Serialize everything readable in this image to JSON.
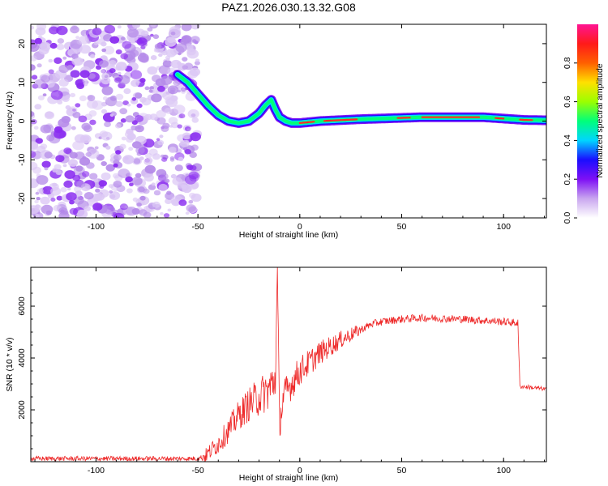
{
  "title": "PAZ1.2026.030.13.32.G08",
  "chart_data": [
    {
      "type": "heatmap",
      "xlabel": "Height of straight line (km)",
      "ylabel": "Frequency (Hz)",
      "xlim": [
        -132,
        121
      ],
      "ylim": [
        -25,
        25
      ],
      "xticks": [
        -100,
        -50,
        0,
        50,
        100
      ],
      "yticks": [
        -20,
        -10,
        0,
        10,
        20
      ],
      "noise_region": [
        -132,
        -50
      ],
      "ridge": {
        "x": [
          -60,
          -55,
          -50,
          -45,
          -40,
          -35,
          -30,
          -25,
          -20,
          -17,
          -14,
          -12,
          -10,
          -7,
          -4,
          0,
          10,
          30,
          60,
          90,
          110,
          121
        ],
        "y": [
          12,
          10,
          7,
          4,
          1.5,
          0,
          -0.5,
          0,
          2,
          4,
          5.5,
          3,
          1,
          0,
          -0.5,
          -0.5,
          0,
          0.5,
          1,
          1,
          0.3,
          0.2
        ]
      },
      "colorbar": {
        "label": "Normalized spectral amplitude",
        "range": [
          0,
          1
        ],
        "ticks": [
          "0.0",
          "0.2",
          "0.4",
          "0.6",
          "0.8"
        ],
        "colors": [
          "#ffffff",
          "#c9a6ef",
          "#7e10f5",
          "#1a0dff",
          "#00d5ff",
          "#00ff7a",
          "#9bff00",
          "#ffe000",
          "#ff6000",
          "#ff1a1a",
          "#ff1493"
        ]
      }
    },
    {
      "type": "line",
      "xlabel": "Height of straight line (km)",
      "ylabel": "SNR (10 * v/v)",
      "xlim": [
        -132,
        121
      ],
      "ylim": [
        0,
        7500
      ],
      "xticks": [
        -100,
        -50,
        0,
        50,
        100
      ],
      "yticks": [
        2000,
        4000,
        6000
      ],
      "color": "#ee2a2a",
      "x": [
        -132,
        -50,
        -46,
        -40,
        -35,
        -30,
        -25,
        -20,
        -15,
        -12,
        -11,
        -10,
        -8,
        -5,
        0,
        10,
        20,
        30,
        35,
        40,
        50,
        60,
        80,
        90,
        100,
        107,
        108,
        109,
        115,
        121
      ],
      "y": [
        120,
        120,
        250,
        700,
        1200,
        1800,
        2200,
        2500,
        2800,
        3200,
        7500,
        1500,
        2500,
        2900,
        3500,
        4200,
        4700,
        5100,
        5300,
        5400,
        5500,
        5550,
        5500,
        5450,
        5400,
        5350,
        2900,
        2900,
        2850,
        2800
      ]
    }
  ]
}
